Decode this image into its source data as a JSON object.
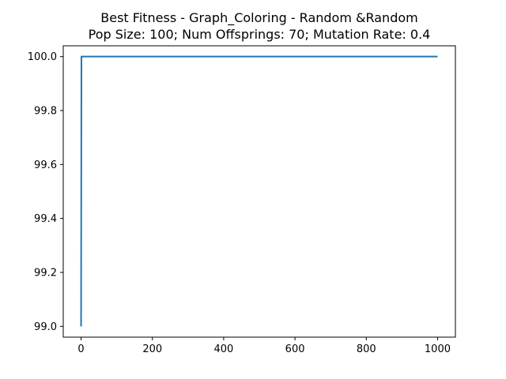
{
  "chart_data": {
    "type": "line",
    "title": "Best Fitness - Graph_Coloring - Random &Random",
    "subtitle": "Pop Size: 100; Num Offsprings: 70; Mutation Rate: 0.4",
    "xlabel": "",
    "ylabel": "",
    "xlim": [
      -50,
      1050
    ],
    "ylim": [
      98.96,
      100.04
    ],
    "x_ticks": [
      0,
      200,
      400,
      600,
      800,
      1000
    ],
    "x_tick_labels": [
      "0",
      "200",
      "400",
      "600",
      "800",
      "1000"
    ],
    "y_ticks": [
      99.0,
      99.2,
      99.4,
      99.6,
      99.8,
      100.0
    ],
    "y_tick_labels": [
      "99.0",
      "99.2",
      "99.4",
      "99.6",
      "99.8",
      "100.0"
    ],
    "grid": false,
    "legend": "none",
    "colors": {
      "line": "#1f77b4",
      "axes": "#000000",
      "background": "#ffffff"
    },
    "series": [
      {
        "x": [
          0,
          1,
          2,
          1000
        ],
        "values": [
          99.0,
          100.0,
          100.0,
          100.0
        ]
      }
    ]
  }
}
